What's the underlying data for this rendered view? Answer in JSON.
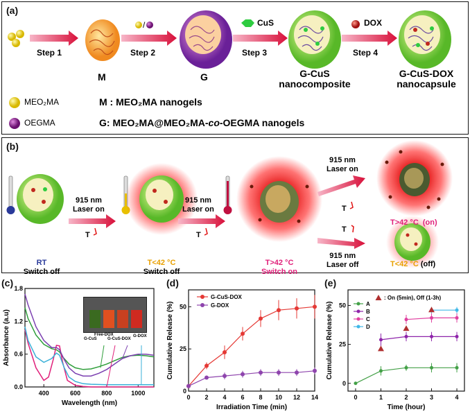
{
  "panel_a": {
    "label": "(a)",
    "steps": [
      "Step 1",
      "Step 2",
      "Step 3",
      "Step 4"
    ],
    "reagents": {
      "cus": "CuS",
      "dox": "DOX"
    },
    "products": {
      "m": "M",
      "g": "G",
      "gcus_1": "G-CuS",
      "gcus_2": "nanocomposite",
      "gcusdox_1": "G-CuS-DOX",
      "gcusdox_2": "nanocapsule"
    },
    "legend": {
      "meo2ma": "MEO₂MA",
      "oegma": "OEGMA",
      "m_desc": "M : MEO₂MA nanogels",
      "g_prefix": "G:  MEO₂MA@MEO₂MA-",
      "g_co": "co",
      "g_suffix": "-OEGMA nanogels"
    },
    "colors": {
      "meo2ma": "#e8d000",
      "oegma": "#8a1a8a",
      "cus": "#2ecc40",
      "dox": "#c0281e"
    }
  },
  "panel_b": {
    "label": "(b)",
    "laser_on_1": "915 nm",
    "laser_on_2": "Laser on",
    "laser_off_2": "Laser off",
    "t": "T",
    "states": {
      "rt": "RT",
      "off": "Switch off",
      "lt42": "T<42 °C",
      "gt42": "T>42 °C",
      "on": "Switch on",
      "gt42_on": "T>42 °C  (on)",
      "lt42_off_t": "T<42 °C",
      "lt42_off_s": "(off)"
    },
    "colors": {
      "rt": "#2a3a9a",
      "lt42": "#e8a000",
      "gt42": "#e0207a"
    }
  },
  "panel_c": {
    "label": "(c)",
    "xlabel": "Wavelength (nm)",
    "ylabel": "Absorbance (a.u)",
    "inset_labels": [
      "G-CuS",
      "Free-DOX",
      "G-CuS-DOX",
      "G-DOX"
    ],
    "chart_data": {
      "type": "line",
      "x_range": [
        280,
        1100
      ],
      "ylim": [
        0,
        1.8
      ],
      "xticks": [
        400,
        600,
        800,
        1000
      ],
      "yticks": [
        0.0,
        0.6,
        1.2,
        1.8
      ],
      "series": [
        {
          "color": "#2e9e3a",
          "x": [
            280,
            300,
            350,
            400,
            450,
            480,
            500,
            520,
            560,
            600,
            650,
            700,
            750,
            800,
            850,
            900,
            950,
            1000,
            1050,
            1100
          ],
          "y": [
            1.45,
            1.25,
            0.95,
            0.78,
            0.7,
            0.68,
            0.64,
            0.55,
            0.42,
            0.35,
            0.32,
            0.33,
            0.37,
            0.42,
            0.48,
            0.54,
            0.57,
            0.58,
            0.57,
            0.55
          ]
        },
        {
          "color": "#e0207a",
          "x": [
            280,
            300,
            350,
            400,
            430,
            460,
            480,
            500,
            520,
            550,
            600,
            650,
            700,
            800,
            900,
            1000,
            1100
          ],
          "y": [
            1.05,
            0.8,
            0.35,
            0.12,
            0.18,
            0.5,
            0.76,
            0.75,
            0.45,
            0.12,
            0.03,
            0.01,
            0.0,
            0.0,
            0.0,
            0.0,
            0.0
          ]
        },
        {
          "color": "#7b3fb0",
          "x": [
            280,
            300,
            350,
            400,
            450,
            480,
            500,
            530,
            560,
            600,
            650,
            700,
            750,
            800,
            850,
            900,
            950,
            1000,
            1050,
            1100
          ],
          "y": [
            1.7,
            1.5,
            1.1,
            0.85,
            0.72,
            0.72,
            0.68,
            0.5,
            0.35,
            0.25,
            0.2,
            0.2,
            0.25,
            0.32,
            0.42,
            0.52,
            0.57,
            0.6,
            0.6,
            0.58
          ]
        },
        {
          "color": "#3ab0d8",
          "x": [
            280,
            300,
            350,
            400,
            450,
            480,
            500,
            530,
            560,
            600,
            650,
            700,
            800,
            900,
            1000,
            1100
          ],
          "y": [
            1.1,
            0.85,
            0.55,
            0.45,
            0.52,
            0.62,
            0.58,
            0.35,
            0.18,
            0.1,
            0.06,
            0.05,
            0.04,
            0.04,
            0.04,
            0.04
          ]
        }
      ]
    }
  },
  "panel_d": {
    "label": "(d)",
    "xlabel": "Irradiation Time (min)",
    "ylabel": "Cumulative Release (%)",
    "chart_data": {
      "type": "line",
      "xlim": [
        0,
        14
      ],
      "ylim": [
        0,
        60
      ],
      "xticks": [
        0,
        2,
        4,
        6,
        8,
        10,
        12,
        14
      ],
      "yticks": [
        0,
        25,
        50
      ],
      "series": [
        {
          "name": "G-CuS-DOX",
          "color": "#e53935",
          "x": [
            0,
            2,
            4,
            6,
            8,
            10,
            12,
            14
          ],
          "y": [
            3,
            15,
            23,
            34,
            43,
            48,
            49,
            50
          ],
          "err": [
            1,
            2,
            4,
            4,
            5,
            6,
            6,
            7
          ]
        },
        {
          "name": "G-DOX",
          "color": "#8e44ad",
          "x": [
            0,
            2,
            4,
            6,
            8,
            10,
            12,
            14
          ],
          "y": [
            3,
            8,
            9,
            10,
            11,
            11,
            11,
            12
          ],
          "err": [
            1,
            1,
            2,
            2,
            2,
            2,
            2,
            2
          ]
        }
      ]
    }
  },
  "panel_e": {
    "label": "(e)",
    "xlabel": "Time (hour)",
    "ylabel": "Cumulative Release (%)",
    "annotation": ": On (5min), Off (1-3h)",
    "chart_data": {
      "type": "line",
      "xlim": [
        -0.3,
        4.3
      ],
      "ylim": [
        -5,
        60
      ],
      "xticks": [
        0,
        1,
        2,
        3,
        4
      ],
      "yticks": [
        0,
        25,
        50
      ],
      "series": [
        {
          "name": "A",
          "color": "#43a047",
          "x": [
            0,
            1,
            2,
            3,
            4
          ],
          "y": [
            0,
            8,
            10,
            10,
            10
          ],
          "err": [
            0,
            3,
            2,
            3,
            3
          ]
        },
        {
          "name": "B",
          "color": "#8e24aa",
          "x": [
            1,
            2,
            3,
            4
          ],
          "y": [
            28,
            30,
            30,
            30
          ],
          "err": [
            4,
            3,
            3,
            3
          ]
        },
        {
          "name": "C",
          "color": "#e040a0",
          "x": [
            2,
            3,
            4
          ],
          "y": [
            41,
            42,
            42
          ],
          "err": [
            3,
            3,
            3
          ]
        },
        {
          "name": "D",
          "color": "#40b8e8",
          "x": [
            3,
            4
          ],
          "y": [
            47,
            47
          ],
          "err": [
            2,
            2
          ]
        }
      ],
      "markers": [
        {
          "x": 1,
          "y": 22
        },
        {
          "x": 2,
          "y": 35
        },
        {
          "x": 3,
          "y": 47
        }
      ]
    }
  }
}
